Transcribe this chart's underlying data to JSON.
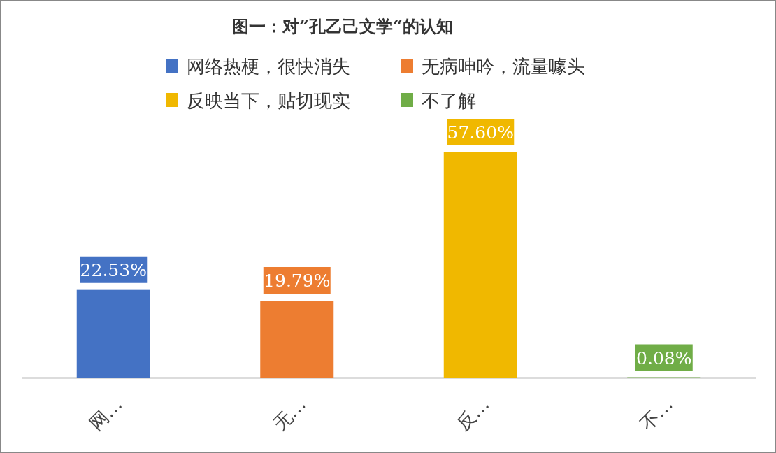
{
  "chart_data": {
    "type": "bar",
    "title": "图一：对”孔乙己文学“的认知",
    "categories": [
      "网…",
      "无…",
      "反…",
      "不…"
    ],
    "stacked": true,
    "series": [
      {
        "name": "网络热梗，很快消失",
        "color": "#4472c4",
        "values": [
          22.53,
          null,
          null,
          null
        ],
        "value_labels": [
          "22.53%",
          null,
          null,
          null
        ]
      },
      {
        "name": "无病呻吟，流量噱头",
        "color": "#ed7d31",
        "values": [
          null,
          19.79,
          null,
          null
        ],
        "value_labels": [
          null,
          "19.79%",
          null,
          null
        ]
      },
      {
        "name": "反映当下，贴切现实",
        "color": "#f0b800",
        "values": [
          null,
          null,
          57.6,
          null
        ],
        "value_labels": [
          null,
          null,
          "57.60%",
          null
        ]
      },
      {
        "name": "不了解",
        "color": "#70ad47",
        "values": [
          null,
          null,
          null,
          0.08
        ],
        "value_labels": [
          null,
          null,
          null,
          "0.08%"
        ]
      }
    ],
    "legend": "top",
    "grid": false
  }
}
